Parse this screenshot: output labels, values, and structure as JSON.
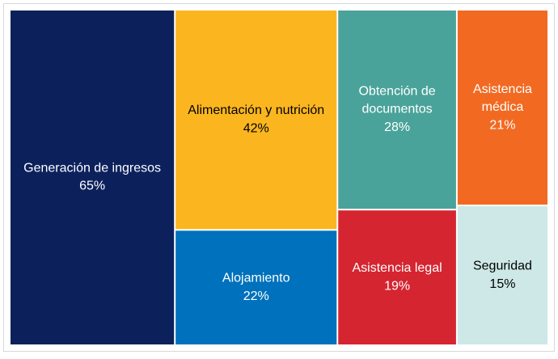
{
  "chart_data": {
    "type": "treemap",
    "categories": [
      "Generación de ingresos",
      "Alimentación y nutrición",
      "Alojamiento",
      "Obtención de documentos",
      "Asistencia legal",
      "Asistencia médica",
      "Seguridad"
    ],
    "values": [
      65,
      42,
      22,
      28,
      19,
      21,
      15
    ],
    "value_labels": [
      "65%",
      "42%",
      "22%",
      "28%",
      "19%",
      "21%",
      "15%"
    ],
    "colors": [
      "#0c215c",
      "#fbb61f",
      "#0071bc",
      "#4aa39a",
      "#d52530",
      "#f26a22",
      "#cde8e6"
    ]
  }
}
